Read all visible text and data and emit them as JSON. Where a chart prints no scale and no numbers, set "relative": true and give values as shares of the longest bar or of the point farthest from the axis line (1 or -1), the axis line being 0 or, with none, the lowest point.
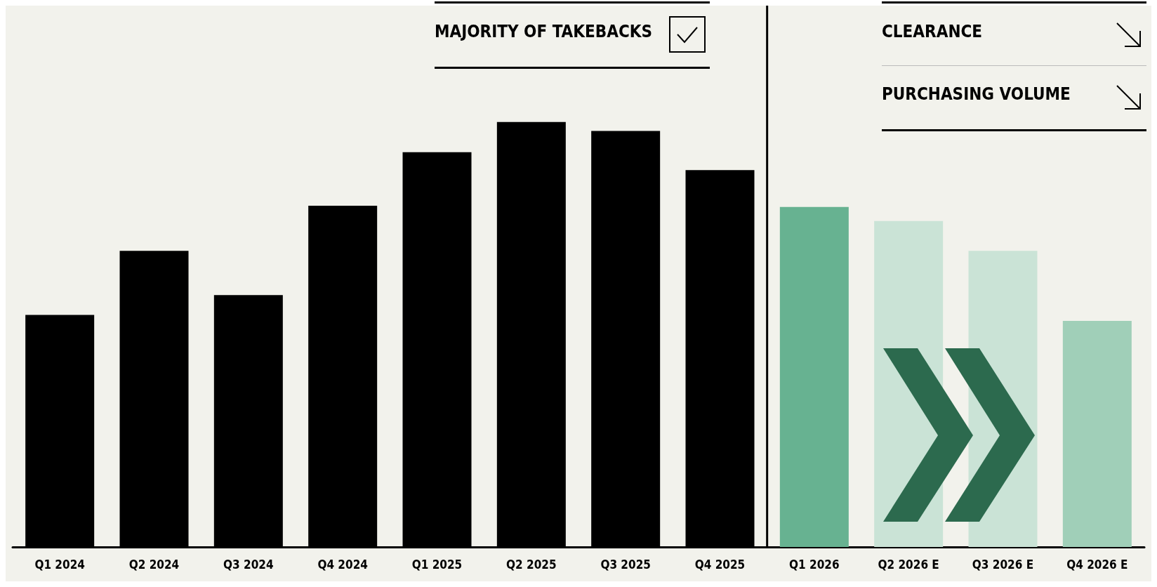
{
  "chart_data": {
    "type": "bar",
    "relative": true,
    "categories": [
      "Q1 2024",
      "Q2 2024",
      "Q3 2024",
      "Q4 2024",
      "Q1 2025",
      "Q2 2025",
      "Q3 2025",
      "Q4 2025",
      "Q1 2026",
      "Q2 2026 E",
      "Q3 2026 E",
      "Q4 2026 E"
    ],
    "values": [
      0.546,
      0.697,
      0.593,
      0.803,
      0.929,
      1,
      0.979,
      0.887,
      0.8,
      0.767,
      0.697,
      0.532
    ],
    "colors": [
      "#000000",
      "#000000",
      "#000000",
      "#000000",
      "#000000",
      "#000000",
      "#000000",
      "#000000",
      "#67b291",
      "#cae3d6",
      "#cae3d6",
      "#a0cfb8"
    ],
    "annotations": [
      "MAJORITY OF TAKEBACKS",
      "CLEARANCE",
      "PURCHASING VOLUME"
    ],
    "grid": false
  }
}
